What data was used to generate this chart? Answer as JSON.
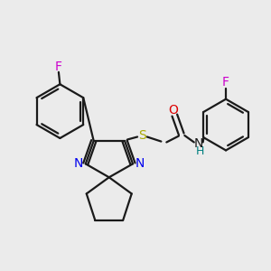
{
  "background_color": "#ebebeb",
  "bond_color": "#1a1a1a",
  "bond_width": 1.6,
  "figsize": [
    3.0,
    3.0
  ],
  "dpi": 100,
  "xlim": [
    0.0,
    10.0
  ],
  "ylim": [
    1.5,
    9.5
  ]
}
